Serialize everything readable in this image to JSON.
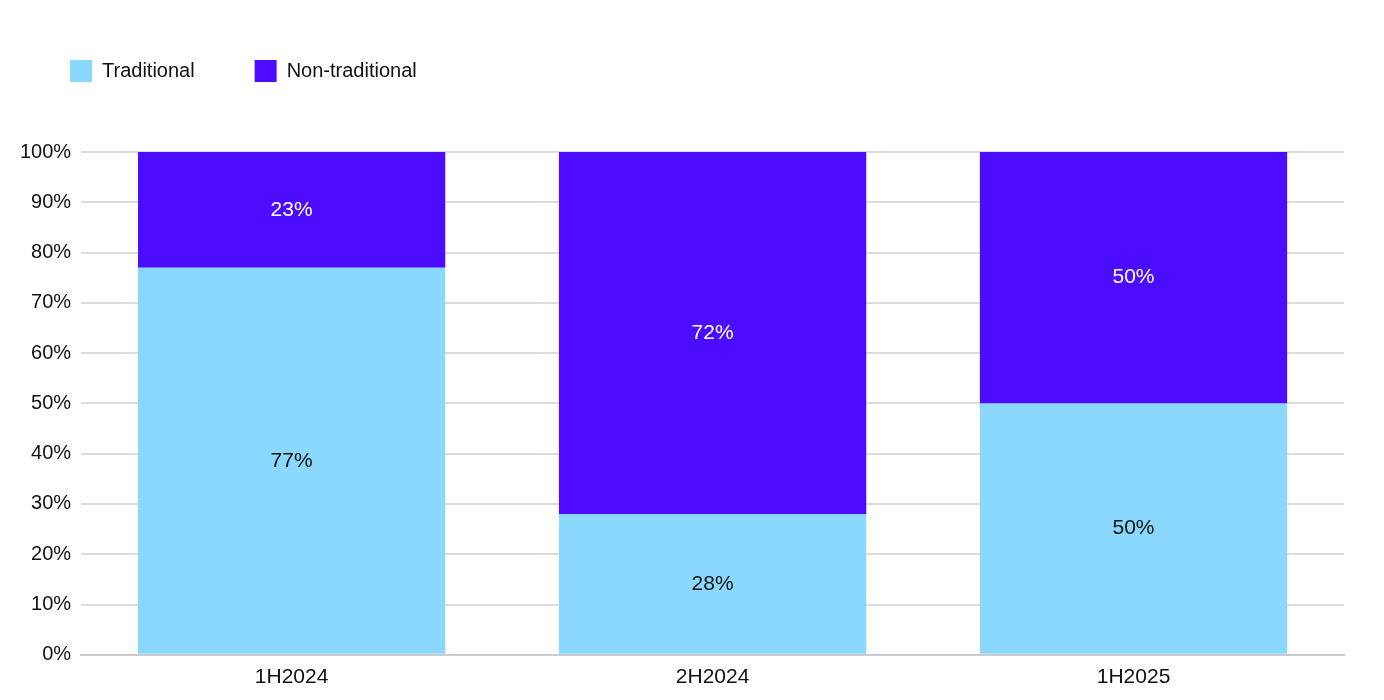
{
  "chart_data": {
    "type": "bar",
    "stacked": true,
    "categories": [
      "1H2024",
      "2H2024",
      "1H2025"
    ],
    "series": [
      {
        "name": "Traditional",
        "color": "#8ad8fd",
        "values": [
          77,
          28,
          50
        ],
        "value_labels": [
          "77%",
          "28%",
          "50%"
        ]
      },
      {
        "name": "Non-traditional",
        "color": "#4b0cff",
        "values": [
          23,
          72,
          50
        ],
        "value_labels": [
          "23%",
          "72%",
          "50%"
        ]
      }
    ],
    "ylim": [
      0,
      100
    ],
    "yticks": [
      {
        "value": 0,
        "label": "0%"
      },
      {
        "value": 10,
        "label": "10%"
      },
      {
        "value": 20,
        "label": "20%"
      },
      {
        "value": 30,
        "label": "30%"
      },
      {
        "value": 40,
        "label": "40%"
      },
      {
        "value": 50,
        "label": "50%"
      },
      {
        "value": 60,
        "label": "60%"
      },
      {
        "value": 70,
        "label": "70%"
      },
      {
        "value": 80,
        "label": "80%"
      },
      {
        "value": 90,
        "label": "90%"
      },
      {
        "value": 100,
        "label": "100%"
      }
    ],
    "grid": "y",
    "legend": "top left"
  }
}
